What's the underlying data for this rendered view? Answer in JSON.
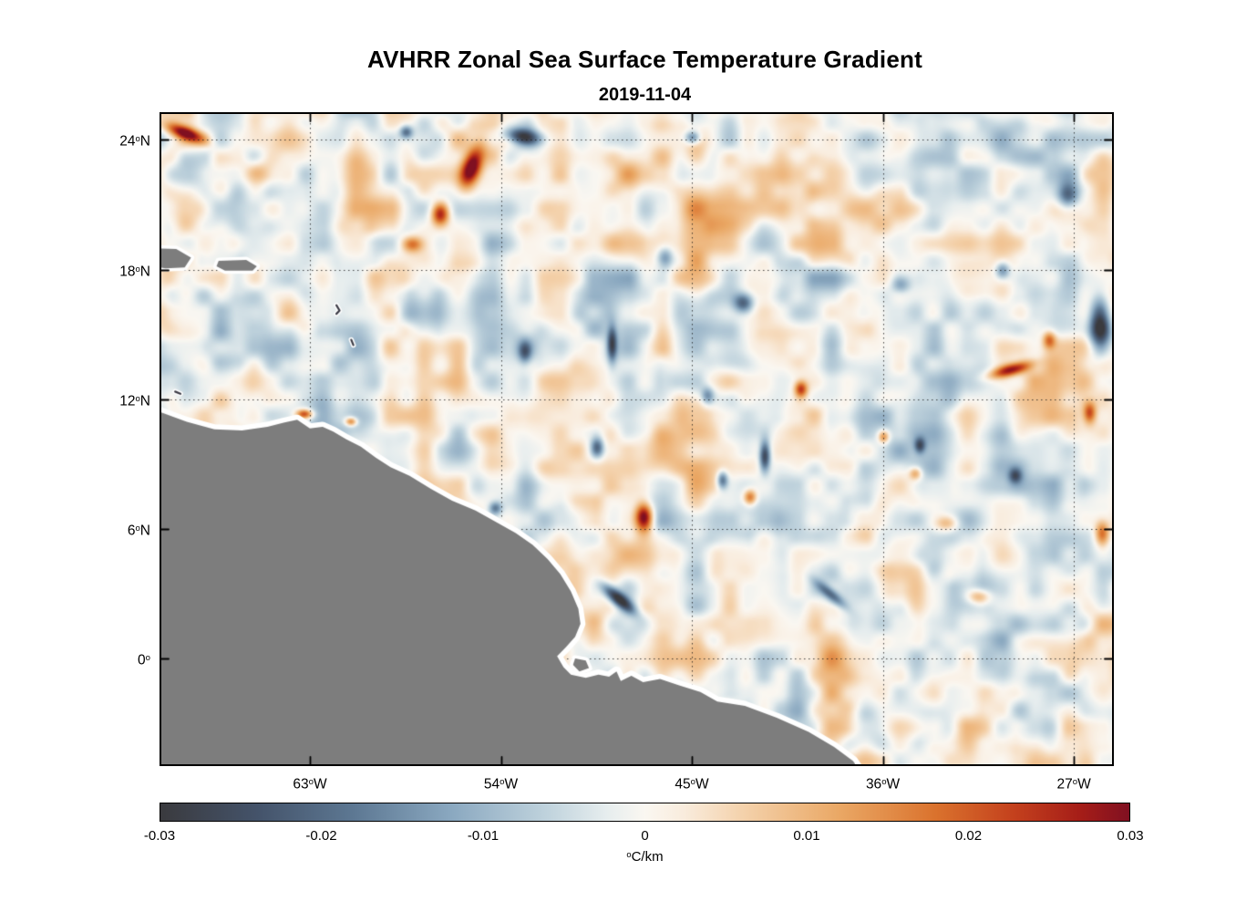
{
  "chart_data": {
    "type": "heatmap",
    "title": "AVHRR Zonal Sea Surface Temperature Gradient",
    "subtitle": "2019-11-04",
    "grid": "dotted",
    "land_color": "#7d7d7d",
    "x_axis": {
      "range": [
        -70.0,
        -25.2
      ],
      "ticks": [
        {
          "value": -63,
          "pre": "63",
          "sup": "o",
          "post": "W"
        },
        {
          "value": -54,
          "pre": "54",
          "sup": "o",
          "post": "W"
        },
        {
          "value": -45,
          "pre": "45",
          "sup": "o",
          "post": "W"
        },
        {
          "value": -36,
          "pre": "36",
          "sup": "o",
          "post": "W"
        },
        {
          "value": -27,
          "pre": "27",
          "sup": "o",
          "post": "W"
        }
      ]
    },
    "y_axis": {
      "range": [
        -4.9,
        25.2
      ],
      "ticks": [
        {
          "value": 24,
          "pre": "24",
          "sup": "o",
          "post": "N"
        },
        {
          "value": 18,
          "pre": "18",
          "sup": "o",
          "post": "N"
        },
        {
          "value": 12,
          "pre": "12",
          "sup": "o",
          "post": "N"
        },
        {
          "value": 6,
          "pre": "6",
          "sup": "o",
          "post": "N"
        },
        {
          "value": 0,
          "pre": "0",
          "sup": "o",
          "post": ""
        }
      ]
    },
    "colorbar": {
      "min": -0.03,
      "max": 0.03,
      "unit_label": {
        "sup": "o",
        "post": "C/km"
      },
      "ticks": [
        {
          "value": -0.03,
          "label": "-0.03"
        },
        {
          "value": -0.02,
          "label": "-0.02"
        },
        {
          "value": -0.01,
          "label": "-0.01"
        },
        {
          "value": 0,
          "label": "0"
        },
        {
          "value": 0.01,
          "label": "0.01"
        },
        {
          "value": 0.02,
          "label": "0.02"
        },
        {
          "value": 0.03,
          "label": "0.03"
        }
      ],
      "stops": [
        [
          0.0,
          "#3a3a3e"
        ],
        [
          0.1,
          "#44536a"
        ],
        [
          0.2,
          "#5d7893"
        ],
        [
          0.3,
          "#8aa8c0"
        ],
        [
          0.4,
          "#c0d3dd"
        ],
        [
          0.46,
          "#e6edee"
        ],
        [
          0.5,
          "#faf7f1"
        ],
        [
          0.54,
          "#f9ecdd"
        ],
        [
          0.6,
          "#f4d2ac"
        ],
        [
          0.7,
          "#eaa865"
        ],
        [
          0.8,
          "#da722d"
        ],
        [
          0.88,
          "#c4411d"
        ],
        [
          0.95,
          "#a51d18"
        ],
        [
          1.0,
          "#801021"
        ]
      ]
    },
    "noise": [
      {
        "scale": 3.2,
        "amp": 0.005,
        "seed": 7
      },
      {
        "scale": 1.6,
        "amp": 0.0075,
        "seed": 13
      },
      {
        "scale": 0.8,
        "amp": 0.0045,
        "seed": 29
      }
    ],
    "features": [
      {
        "lon": -68.9,
        "lat": 24.35,
        "amp": 0.03,
        "sx": 0.9,
        "sy": 0.3,
        "rot": 20
      },
      {
        "lon": -55.4,
        "lat": 22.8,
        "amp": 0.034,
        "sx": 0.45,
        "sy": 0.95,
        "rot": 20
      },
      {
        "lon": -56.9,
        "lat": 20.6,
        "amp": 0.03,
        "sx": 0.42,
        "sy": 0.55,
        "rot": 0
      },
      {
        "lon": -58.2,
        "lat": 19.2,
        "amp": 0.016,
        "sx": 0.5,
        "sy": 0.35,
        "rot": 0
      },
      {
        "lon": -30.0,
        "lat": 13.4,
        "amp": 0.028,
        "sx": 1.0,
        "sy": 0.28,
        "rot": -15
      },
      {
        "lon": -39.9,
        "lat": 12.5,
        "amp": 0.024,
        "sx": 0.3,
        "sy": 0.38,
        "rot": 0
      },
      {
        "lon": -47.3,
        "lat": 6.6,
        "amp": 0.032,
        "sx": 0.4,
        "sy": 0.68,
        "rot": 0
      },
      {
        "lon": -63.3,
        "lat": 11.35,
        "amp": 0.026,
        "sx": 0.4,
        "sy": 0.22,
        "rot": 0
      },
      {
        "lon": -61.1,
        "lat": 11.0,
        "amp": 0.022,
        "sx": 0.28,
        "sy": 0.2,
        "rot": 0
      },
      {
        "lon": -26.3,
        "lat": 11.4,
        "amp": 0.022,
        "sx": 0.3,
        "sy": 0.5,
        "rot": 0
      },
      {
        "lon": -25.7,
        "lat": 5.8,
        "amp": 0.022,
        "sx": 0.35,
        "sy": 0.55,
        "rot": 0
      },
      {
        "lon": -33.0,
        "lat": 6.3,
        "amp": 0.014,
        "sx": 0.55,
        "sy": 0.4,
        "rot": 0
      },
      {
        "lon": -36.0,
        "lat": 10.3,
        "amp": 0.018,
        "sx": 0.26,
        "sy": 0.3,
        "rot": 0
      },
      {
        "lon": -42.3,
        "lat": 7.5,
        "amp": 0.02,
        "sx": 0.3,
        "sy": 0.35,
        "rot": 0
      },
      {
        "lon": -31.5,
        "lat": 2.9,
        "amp": 0.016,
        "sx": 0.55,
        "sy": 0.35,
        "rot": 0
      },
      {
        "lon": -34.5,
        "lat": 8.6,
        "amp": 0.015,
        "sx": 0.3,
        "sy": 0.3,
        "rot": 0
      },
      {
        "lon": -28.2,
        "lat": 14.8,
        "amp": 0.018,
        "sx": 0.3,
        "sy": 0.4,
        "rot": 0
      },
      {
        "lon": -65.5,
        "lat": 22.5,
        "amp": 0.012,
        "sx": 0.8,
        "sy": 0.6,
        "rot": 0
      },
      {
        "lon": -53.0,
        "lat": 24.2,
        "amp": -0.024,
        "sx": 0.85,
        "sy": 0.35,
        "rot": 10
      },
      {
        "lon": -45.0,
        "lat": 24.15,
        "amp": -0.02,
        "sx": 0.35,
        "sy": 0.3,
        "rot": 0
      },
      {
        "lon": -42.6,
        "lat": 16.5,
        "amp": -0.022,
        "sx": 0.45,
        "sy": 0.45,
        "rot": 0
      },
      {
        "lon": -48.8,
        "lat": 14.6,
        "amp": -0.024,
        "sx": 0.22,
        "sy": 0.8,
        "rot": 0
      },
      {
        "lon": -25.8,
        "lat": 15.6,
        "amp": -0.038,
        "sx": 0.5,
        "sy": 1.2,
        "rot": 0
      },
      {
        "lon": -30.4,
        "lat": 18.0,
        "amp": -0.018,
        "sx": 0.35,
        "sy": 0.4,
        "rot": 0
      },
      {
        "lon": -41.6,
        "lat": 9.4,
        "amp": -0.028,
        "sx": 0.25,
        "sy": 0.7,
        "rot": 0
      },
      {
        "lon": -43.6,
        "lat": 8.3,
        "amp": -0.02,
        "sx": 0.25,
        "sy": 0.4,
        "rot": 0
      },
      {
        "lon": -48.5,
        "lat": 2.8,
        "amp": -0.032,
        "sx": 0.9,
        "sy": 0.3,
        "rot": 40
      },
      {
        "lon": -54.3,
        "lat": 7.0,
        "amp": -0.018,
        "sx": 0.3,
        "sy": 0.3,
        "rot": 0
      },
      {
        "lon": -38.5,
        "lat": 3.0,
        "amp": -0.018,
        "sx": 0.9,
        "sy": 0.25,
        "rot": 40
      },
      {
        "lon": -34.3,
        "lat": 9.9,
        "amp": -0.02,
        "sx": 0.25,
        "sy": 0.35,
        "rot": 0
      },
      {
        "lon": -29.8,
        "lat": 8.5,
        "amp": -0.018,
        "sx": 0.3,
        "sy": 0.35,
        "rot": 0
      },
      {
        "lon": -27.3,
        "lat": 21.5,
        "amp": -0.022,
        "sx": 0.5,
        "sy": 0.55,
        "rot": 0
      },
      {
        "lon": -52.9,
        "lat": 14.2,
        "amp": -0.016,
        "sx": 0.3,
        "sy": 0.5,
        "rot": 0
      },
      {
        "lon": -58.5,
        "lat": 24.4,
        "amp": -0.02,
        "sx": 0.3,
        "sy": 0.3,
        "rot": 0
      },
      {
        "lon": -49.5,
        "lat": 9.8,
        "amp": -0.02,
        "sx": 0.3,
        "sy": 0.45,
        "rot": 0
      },
      {
        "lon": -46.3,
        "lat": 18.6,
        "amp": -0.014,
        "sx": 0.35,
        "sy": 0.5,
        "rot": 0
      },
      {
        "lon": -35.2,
        "lat": 17.3,
        "amp": -0.012,
        "sx": 0.45,
        "sy": 0.4,
        "rot": 0
      },
      {
        "lon": -44.3,
        "lat": 12.2,
        "amp": -0.014,
        "sx": 0.3,
        "sy": 0.4,
        "rot": 0
      }
    ],
    "coastline": {
      "mainland": [
        [
          -70.6,
          11.6
        ],
        [
          -68.8,
          10.95
        ],
        [
          -67.5,
          10.6
        ],
        [
          -66.2,
          10.55
        ],
        [
          -65.0,
          10.72
        ],
        [
          -64.2,
          10.92
        ],
        [
          -63.6,
          11.05
        ],
        [
          -63.0,
          10.65
        ],
        [
          -62.4,
          10.72
        ],
        [
          -61.9,
          10.5
        ],
        [
          -61.3,
          10.15
        ],
        [
          -60.6,
          9.8
        ],
        [
          -59.9,
          9.3
        ],
        [
          -59.2,
          8.85
        ],
        [
          -58.3,
          8.45
        ],
        [
          -57.3,
          7.85
        ],
        [
          -56.3,
          7.3
        ],
        [
          -55.2,
          6.85
        ],
        [
          -54.2,
          6.3
        ],
        [
          -53.3,
          5.8
        ],
        [
          -52.5,
          5.25
        ],
        [
          -51.8,
          4.6
        ],
        [
          -51.2,
          3.9
        ],
        [
          -50.7,
          3.1
        ],
        [
          -50.35,
          2.3
        ],
        [
          -50.25,
          1.6
        ],
        [
          -50.5,
          1.0
        ],
        [
          -50.95,
          0.5
        ],
        [
          -51.35,
          0.1
        ],
        [
          -51.05,
          -0.4
        ],
        [
          -50.7,
          -0.75
        ],
        [
          -50.0,
          -0.9
        ],
        [
          -49.4,
          -0.75
        ],
        [
          -48.9,
          -0.85
        ],
        [
          -48.55,
          -0.6
        ],
        [
          -48.35,
          -1.05
        ],
        [
          -47.85,
          -0.8
        ],
        [
          -47.3,
          -1.1
        ],
        [
          -46.5,
          -0.95
        ],
        [
          -45.6,
          -1.25
        ],
        [
          -44.6,
          -1.55
        ],
        [
          -43.8,
          -2.0
        ],
        [
          -42.5,
          -2.2
        ],
        [
          -41.0,
          -2.75
        ],
        [
          -39.5,
          -3.4
        ],
        [
          -38.3,
          -4.1
        ],
        [
          -37.4,
          -4.75
        ],
        [
          -36.9,
          -5.5
        ],
        [
          -70.6,
          -5.5
        ]
      ],
      "islands": [
        [
          [
            -71.0,
            19.0
          ],
          [
            -69.3,
            18.95
          ],
          [
            -68.6,
            18.55
          ],
          [
            -68.9,
            18.1
          ],
          [
            -69.8,
            18.05
          ],
          [
            -71.0,
            18.3
          ]
        ],
        [
          [
            -67.3,
            18.4
          ],
          [
            -66.0,
            18.45
          ],
          [
            -65.5,
            18.15
          ],
          [
            -65.7,
            17.95
          ],
          [
            -67.0,
            17.95
          ],
          [
            -67.4,
            18.15
          ]
        ],
        [
          [
            -50.5,
            0.0
          ],
          [
            -50.0,
            -0.1
          ],
          [
            -49.85,
            -0.45
          ],
          [
            -50.3,
            -0.6
          ],
          [
            -50.6,
            -0.3
          ]
        ]
      ],
      "island_marks": [
        [
          [
            -61.75,
            16.35
          ],
          [
            -61.6,
            16.1
          ],
          [
            -61.75,
            15.95
          ]
        ],
        [
          [
            -61.05,
            14.75
          ],
          [
            -60.95,
            14.5
          ]
        ],
        [
          [
            -69.35,
            12.35
          ],
          [
            -69.1,
            12.25
          ]
        ]
      ]
    }
  }
}
